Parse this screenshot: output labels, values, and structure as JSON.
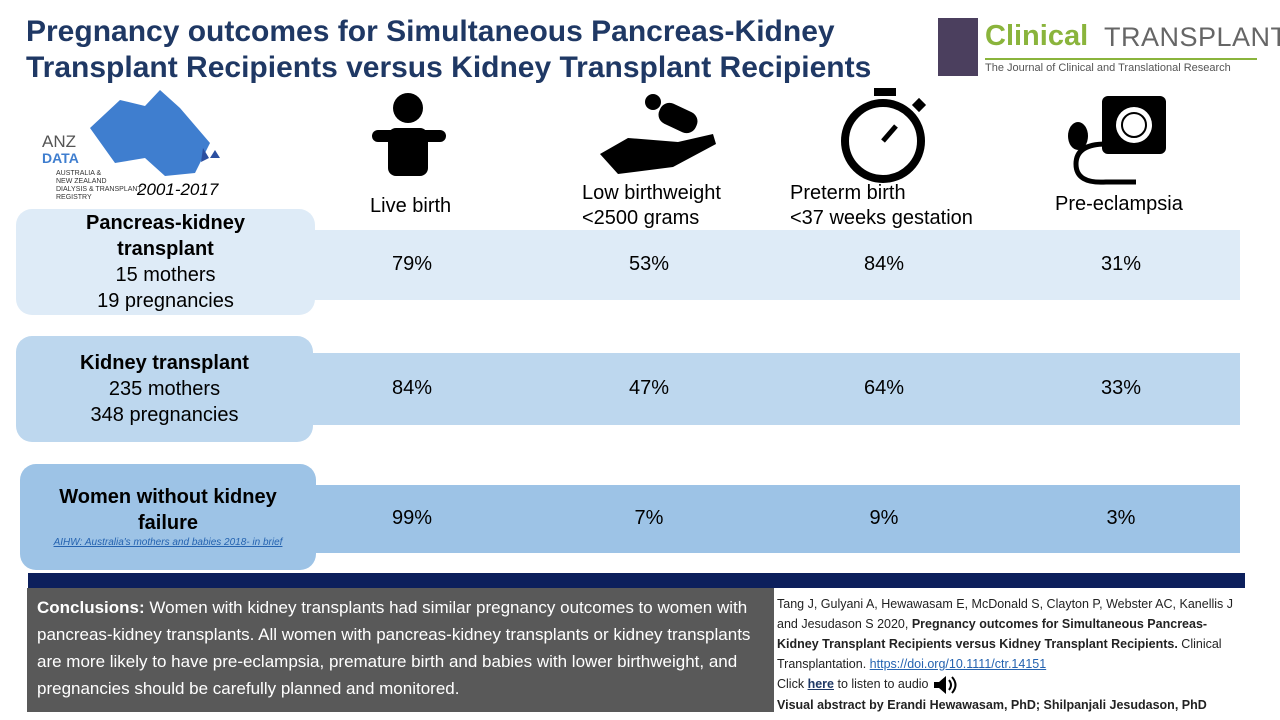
{
  "header": {
    "title": "Pregnancy outcomes for Simultaneous Pancreas-Kidney Transplant Recipients versus Kidney Transplant Recipients",
    "journal": {
      "name": "Clinical",
      "name2": "TRANSPLANTATION",
      "subtitle": "The Journal of Clinical and Translational Research"
    },
    "registry": {
      "abbr": "ANZ",
      "abbr2": "DATA",
      "name": "AUSTRALIA &",
      "name2": "NEW ZEALAND",
      "name3": "DIALYSIS & TRANSPLANT",
      "name4": "REGISTRY",
      "period": "2001-2017"
    }
  },
  "table": {
    "columns": [
      [
        "Live birth"
      ],
      [
        "Low birthweight",
        "<2500 grams"
      ],
      [
        "Preterm birth",
        "<37 weeks gestation"
      ],
      [
        "Pre-eclampsia"
      ]
    ],
    "rows": [
      {
        "name": "Pancreas-kidney transplant",
        "details": [
          "15 mothers",
          "19 pregnancies"
        ],
        "values": [
          "79%",
          "53%",
          "84%",
          "31%"
        ]
      },
      {
        "name": "Kidney transplant",
        "details": [
          "235 mothers",
          "348 pregnancies"
        ],
        "values": [
          "84%",
          "47%",
          "64%",
          "33%"
        ]
      },
      {
        "name": "Women without kidney failure",
        "source": "AIHW: Australia's mothers and babies 2018- in brief",
        "values": [
          "99%",
          "7%",
          "9%",
          "3%"
        ]
      }
    ]
  },
  "conclusions": {
    "label": "Conclusions:",
    "text": "Women with kidney transplants had similar pregnancy outcomes to women with pancreas-kidney transplants. All women with pancreas-kidney transplants or kidney transplants are more likely to have pre-eclampsia, premature birth and babies with lower birthweight, and pregnancies should be carefully planned and monitored."
  },
  "citation": {
    "authors": "Tang J, Gulyani A, Hewawasam E, McDonald S, Clayton P, Webster AC, Kanellis J and Jesudason S 2020,",
    "article": "Pregnancy outcomes for Simultaneous Pancreas-Kidney Transplant Recipients versus Kidney Transplant Recipients.",
    "journal": "Clinical Transplantation.",
    "doi": "https://doi.org/10.1111/ctr.14151",
    "click": "Click",
    "here": "here",
    "listen": "to listen to audio",
    "credit": "Visual abstract by Erandi Hewawasam, PhD; Shilpanjali Jesudason, PhD"
  }
}
